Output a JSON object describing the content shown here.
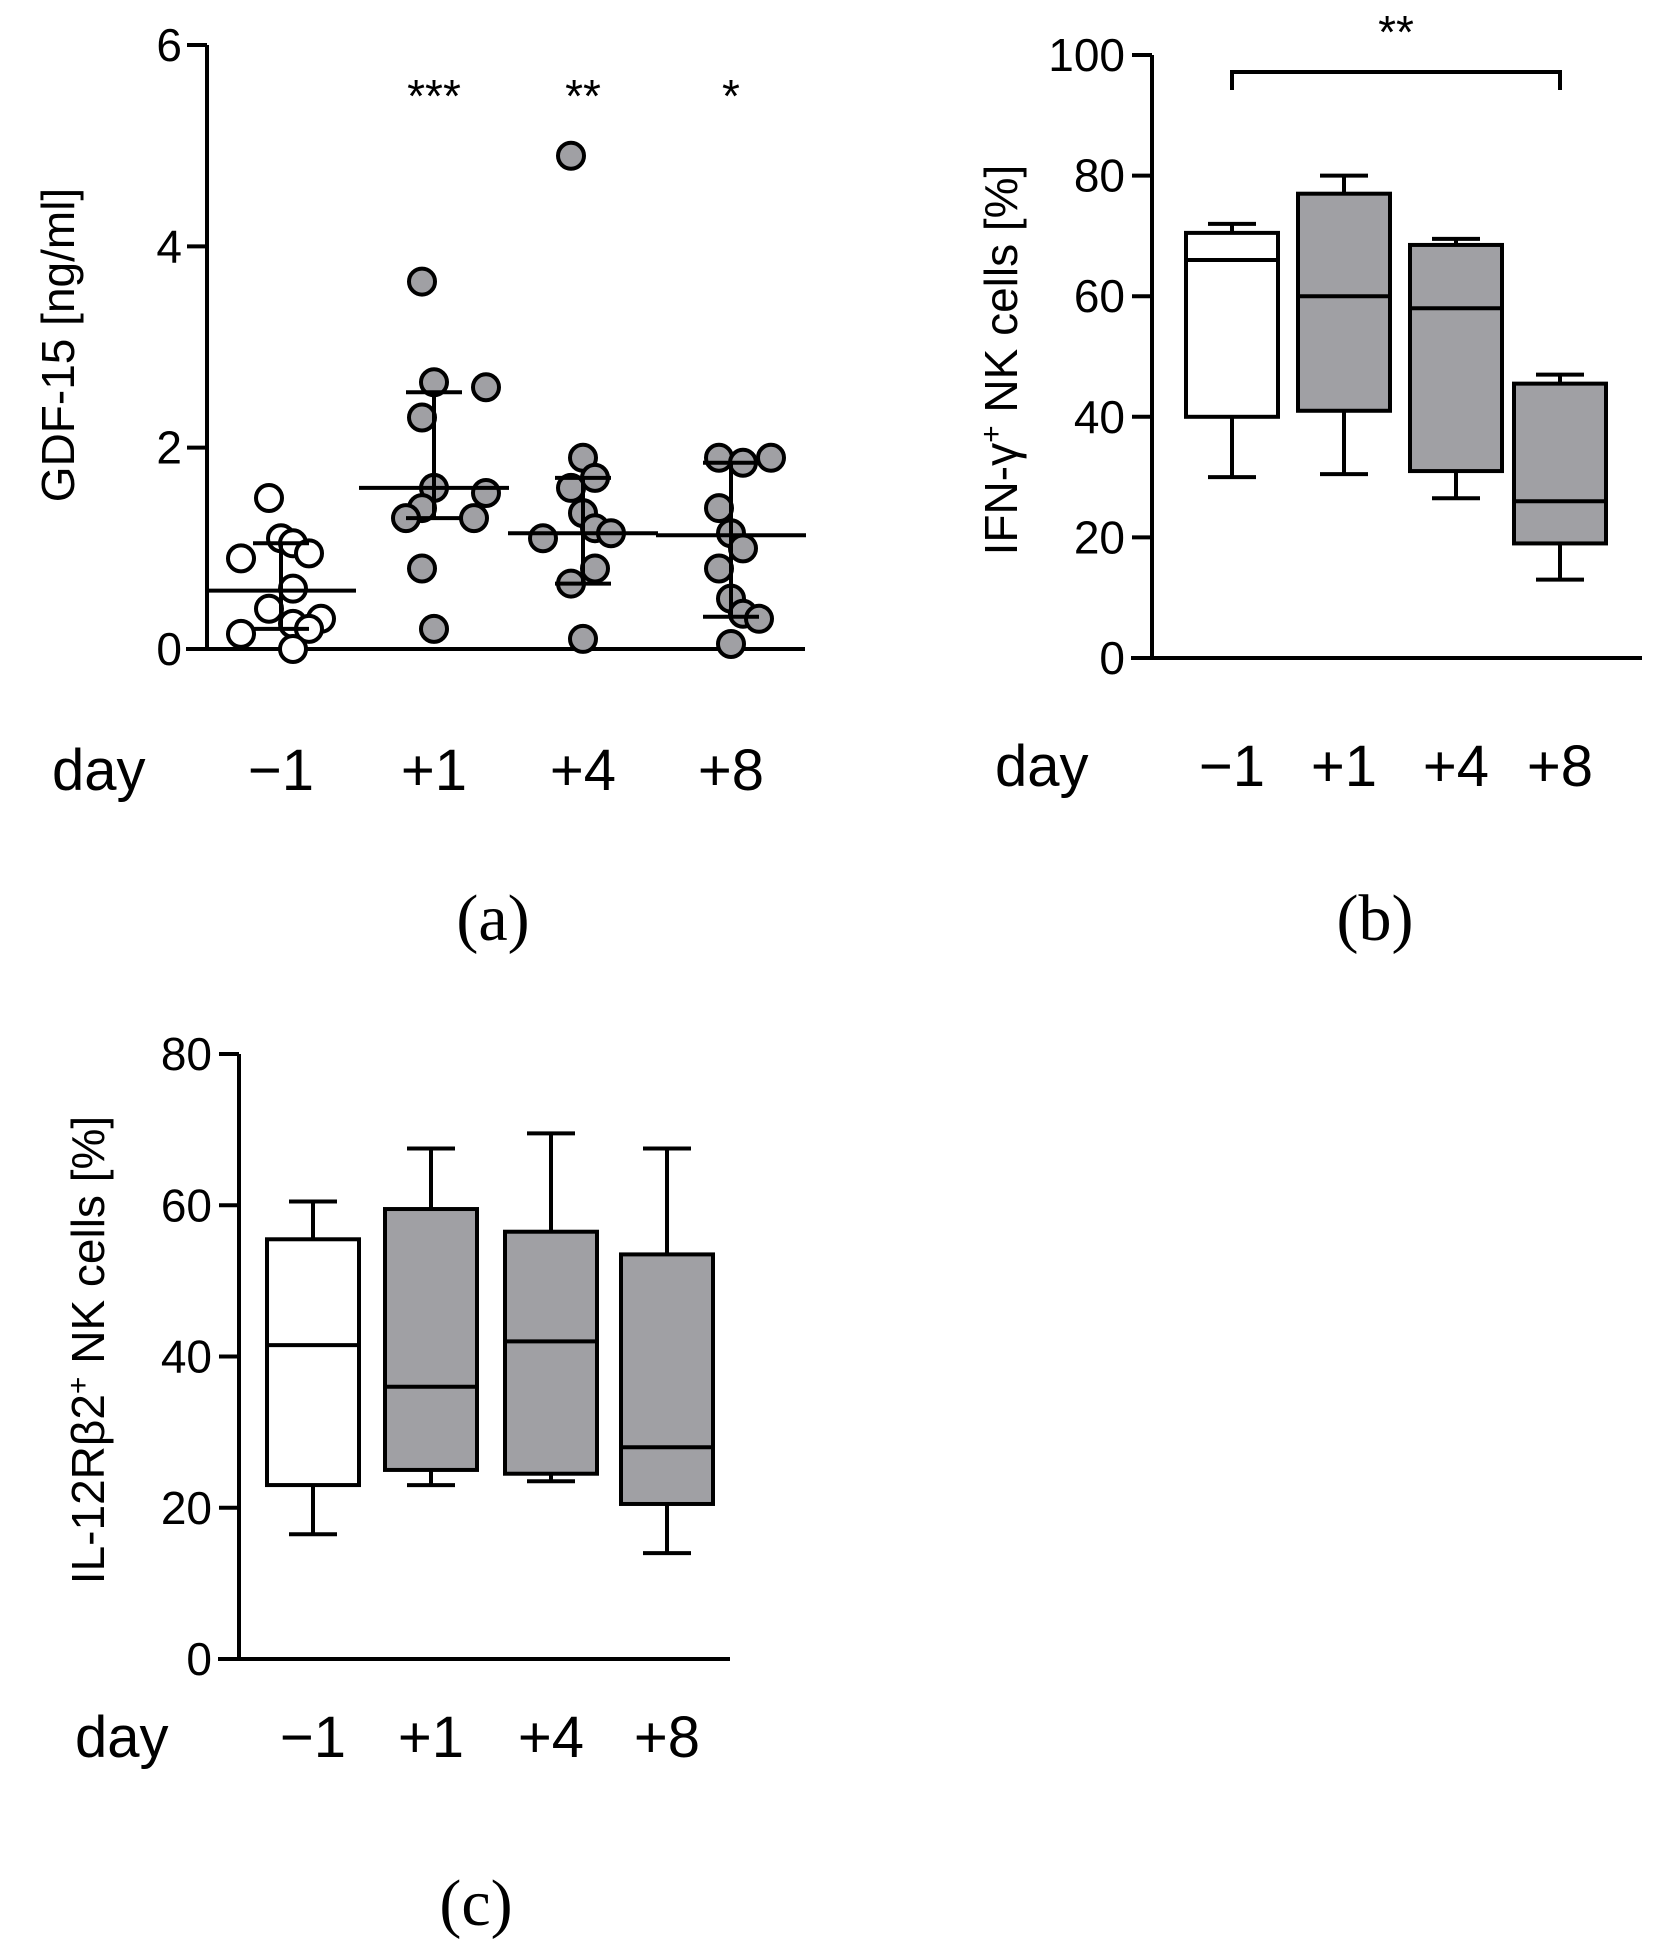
{
  "chart_data": [
    {
      "panel": "(a)",
      "type": "scatter",
      "ylabel": "GDF-15 [ng/ml]",
      "xlabel": "day",
      "categories": [
        "−1",
        "+1",
        "+4",
        "+8"
      ],
      "ylim": [
        0,
        6
      ],
      "yticks": [
        "0",
        "2",
        "4",
        "6"
      ],
      "significance": [
        "",
        "***",
        "**",
        "*"
      ],
      "fill_colors": [
        "#ffffff",
        "#a0a0a4",
        "#a0a0a4",
        "#a0a0a4"
      ],
      "series": [
        {
          "name": "−1",
          "values": [
            1.5,
            1.1,
            1.05,
            0.95,
            0.9,
            0.6,
            0.4,
            0.3,
            0.25,
            0.2,
            0.15,
            0.0
          ],
          "median": 0.58,
          "q1": 0.2,
          "q3": 1.05
        },
        {
          "name": "+1",
          "values": [
            3.65,
            2.65,
            2.6,
            2.3,
            1.6,
            1.55,
            1.4,
            1.3,
            1.3,
            0.8,
            0.2
          ],
          "median": 1.6,
          "q1": 1.3,
          "q3": 2.55
        },
        {
          "name": "+4",
          "values": [
            4.9,
            1.9,
            1.7,
            1.6,
            1.35,
            1.2,
            1.15,
            1.1,
            0.8,
            0.65,
            0.1
          ],
          "median": 1.15,
          "q1": 0.65,
          "q3": 1.7
        },
        {
          "name": "+8",
          "values": [
            1.9,
            1.9,
            1.85,
            1.4,
            1.15,
            1.0,
            0.8,
            0.5,
            0.35,
            0.3,
            0.05
          ],
          "median": 1.13,
          "q1": 0.32,
          "q3": 1.85
        }
      ]
    },
    {
      "panel": "(b)",
      "type": "box",
      "ylabel_main": "IFN-γ",
      "ylabel_sup": "+",
      "ylabel_rest": " NK cells [%]",
      "xlabel": "day",
      "categories": [
        "−1",
        "+1",
        "+4",
        "+8"
      ],
      "ylim": [
        0,
        100
      ],
      "yticks": [
        "0",
        "20",
        "40",
        "60",
        "80",
        "100"
      ],
      "significance_bracket": {
        "from": 0,
        "to": 3,
        "label": "**"
      },
      "fill_colors": [
        "#ffffff",
        "#a0a0a4",
        "#a0a0a4",
        "#a0a0a4"
      ],
      "boxes": [
        {
          "min": 30,
          "q1": 40,
          "median": 66,
          "q3": 70.5,
          "max": 72
        },
        {
          "min": 30.5,
          "q1": 41,
          "median": 60,
          "q3": 77,
          "max": 80
        },
        {
          "min": 26.5,
          "q1": 31,
          "median": 58,
          "q3": 68.5,
          "max": 69.5
        },
        {
          "min": 13,
          "q1": 19,
          "median": 26,
          "q3": 45.5,
          "max": 47
        }
      ]
    },
    {
      "panel": "(c)",
      "type": "box",
      "ylabel_main": "IL-12Rβ2",
      "ylabel_sup": "+",
      "ylabel_rest": " NK cells [%]",
      "xlabel": "day",
      "categories": [
        "−1",
        "+1",
        "+4",
        "+8"
      ],
      "ylim": [
        0,
        80
      ],
      "yticks": [
        "0",
        "20",
        "40",
        "60",
        "80"
      ],
      "fill_colors": [
        "#ffffff",
        "#a0a0a4",
        "#a0a0a4",
        "#a0a0a4"
      ],
      "boxes": [
        {
          "min": 16.5,
          "q1": 23,
          "median": 41.5,
          "q3": 55.5,
          "max": 60.5
        },
        {
          "min": 23,
          "q1": 25,
          "median": 36,
          "q3": 59.5,
          "max": 67.5
        },
        {
          "min": 23.5,
          "q1": 24.5,
          "median": 42,
          "q3": 56.5,
          "max": 69.5
        },
        {
          "min": 14,
          "q1": 20.5,
          "median": 28,
          "q3": 53.5,
          "max": 67.5
        }
      ]
    }
  ]
}
